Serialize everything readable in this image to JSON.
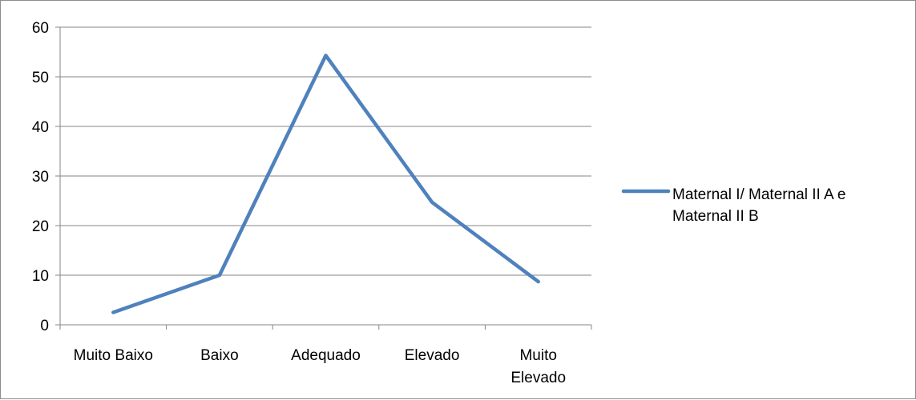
{
  "chart_data": {
    "type": "line",
    "categories": [
      [
        "Muito Baixo"
      ],
      [
        "Baixo"
      ],
      [
        "Adequado"
      ],
      [
        "Elevado"
      ],
      [
        "Muito",
        "Elevado"
      ]
    ],
    "series": [
      {
        "name": "Maternal I/ Maternal II A e Maternal II B",
        "values": [
          2.5,
          10,
          54.3,
          24.7,
          8.7
        ]
      }
    ],
    "legend_lines": [
      "Maternal I/ Maternal II A e",
      "Maternal II B"
    ],
    "ylim": [
      0,
      60
    ],
    "yticks": [
      "0",
      "10",
      "20",
      "30",
      "40",
      "50",
      "60"
    ],
    "grid": true,
    "legend_position": "right",
    "colors": {
      "series": "#4f81bd",
      "grid": "#868686",
      "axis": "#868686"
    }
  }
}
